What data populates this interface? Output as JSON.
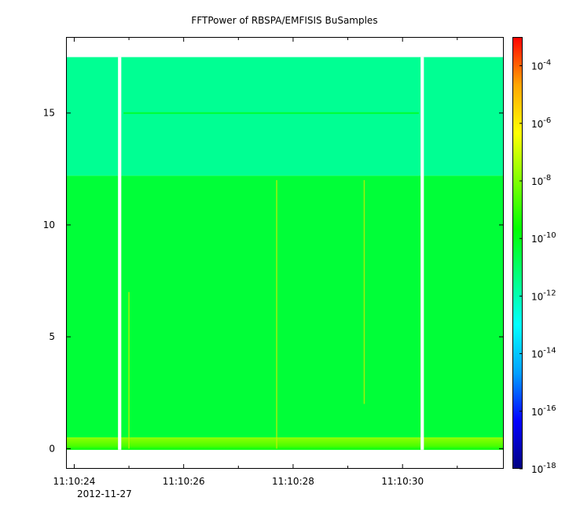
{
  "chart_data": {
    "type": "heatmap",
    "title": "FFTPower of RBSPA/EMFISIS  BuSamples",
    "xlabel": "",
    "ylabel": "",
    "x_ticks": [
      {
        "value": 24,
        "label": "11:10:24"
      },
      {
        "value": 26,
        "label": "11:10:26"
      },
      {
        "value": 28,
        "label": "11:10:28"
      },
      {
        "value": 30,
        "label": "11:10:30"
      }
    ],
    "x_minor_ticks": [
      25,
      27,
      29,
      31
    ],
    "date_label": "2012-11-27",
    "xlim_seconds": [
      23.85,
      31.85
    ],
    "y_ticks": [
      0,
      5,
      10,
      15
    ],
    "ylim": [
      -0.9,
      18.4
    ],
    "data_extent": {
      "x": [
        23.85,
        31.85
      ],
      "y": [
        -0.05,
        17.5
      ]
    },
    "data_gaps_seconds": [
      {
        "start": 24.8,
        "end": 24.86
      },
      {
        "start": 30.33,
        "end": 30.39
      }
    ],
    "colorbar": {
      "scale": "log",
      "range": [
        1e-18,
        0.001
      ],
      "tick_exponents": [
        -4,
        -6,
        -8,
        -10,
        -12,
        -14,
        -16,
        -18
      ],
      "tick_base": "10",
      "colormap": [
        "#00007f",
        "#0000ff",
        "#00a0ff",
        "#00ffff",
        "#00ff7f",
        "#00ff00",
        "#7fff00",
        "#ffff00",
        "#ffa500",
        "#ff0000"
      ]
    },
    "features": [
      {
        "kind": "band",
        "y_range": [
          12.2,
          17.5
        ],
        "log10_power": -11.6
      },
      {
        "kind": "band",
        "y_range": [
          0.5,
          12.2
        ],
        "log10_power": -10.4
      },
      {
        "kind": "band",
        "y_range": [
          -0.05,
          0.5
        ],
        "log10_power": -8.4
      },
      {
        "kind": "line",
        "y": 15.0,
        "x_range": [
          24.9,
          30.3
        ],
        "log10_power": -10.3
      },
      {
        "kind": "spike",
        "x": 25.0,
        "y_range": [
          0,
          7.0
        ]
      },
      {
        "kind": "spike",
        "x": 27.7,
        "y_range": [
          0,
          12.0
        ]
      },
      {
        "kind": "spike",
        "x": 29.3,
        "y_range": [
          2.0,
          12.0
        ]
      }
    ]
  }
}
